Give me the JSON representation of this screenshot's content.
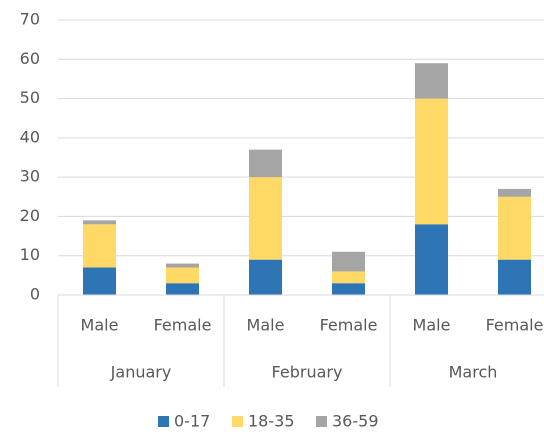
{
  "chart_data": {
    "type": "stacked_bar",
    "categories": [
      "Male",
      "Female",
      "Male",
      "Female",
      "Male",
      "Female"
    ],
    "groups": [
      "January",
      "February",
      "March"
    ],
    "series": [
      {
        "name": "0-17",
        "color": "#2e75b6",
        "values": [
          7,
          3,
          9,
          3,
          18,
          9
        ]
      },
      {
        "name": "18-35",
        "color": "#ffd966",
        "values": [
          11,
          4,
          21,
          3,
          32,
          16
        ]
      },
      {
        "name": "36-59",
        "color": "#a5a5a5",
        "values": [
          1,
          1,
          7,
          5,
          9,
          2
        ]
      }
    ],
    "ylim": [
      0,
      70
    ],
    "yticks": [
      0,
      10,
      20,
      30,
      40,
      50,
      60,
      70
    ],
    "grid": true,
    "legend": "bottom"
  }
}
